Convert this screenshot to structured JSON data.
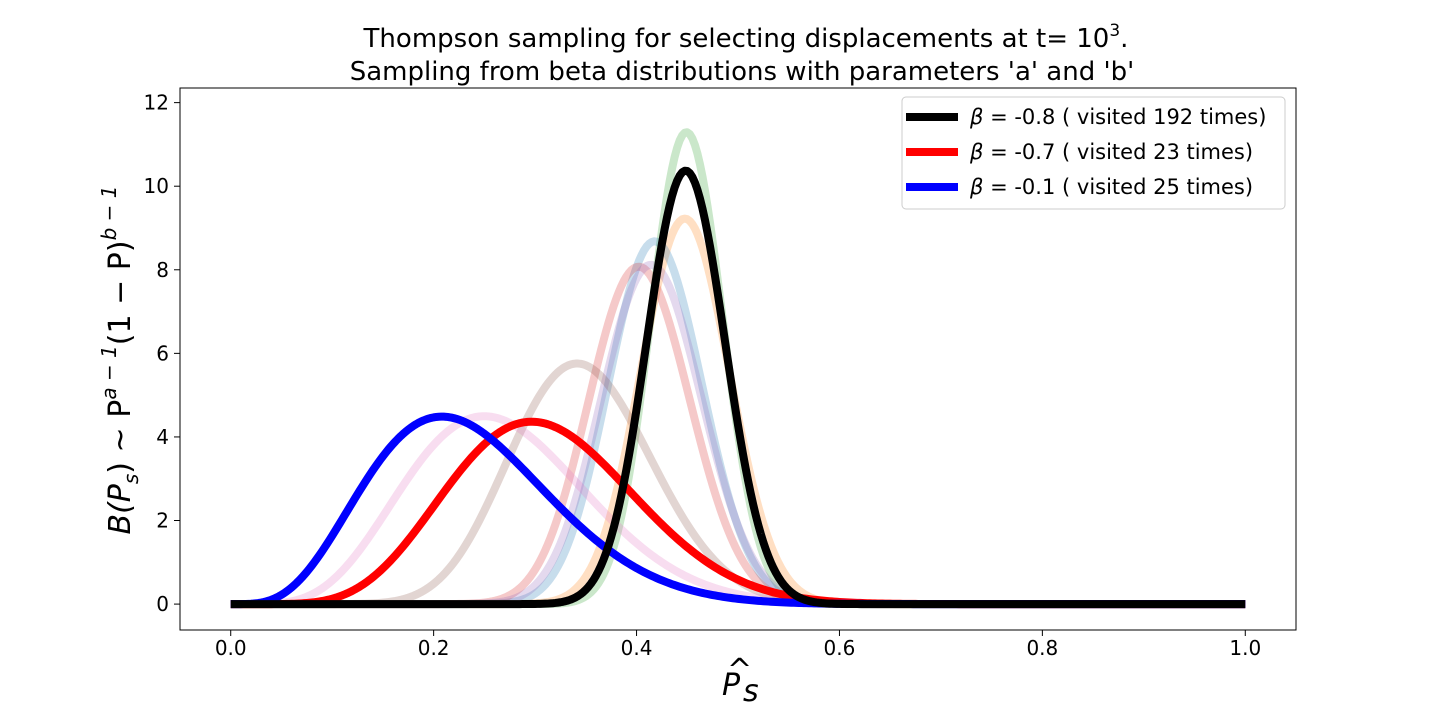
{
  "chart_data": {
    "type": "line",
    "title": {
      "line1_prefix": "Thompson sampling for selecting displacements at t= 10",
      "line1_exp": "3",
      "line1_suffix": ".",
      "line2": "Sampling from beta distributions with parameters 'a' and 'b'"
    },
    "xlabel": {
      "base": "P",
      "hat": "^",
      "sub": "s"
    },
    "ylabel": {
      "text": "B(P",
      "sub_s": "s",
      "rest": ") ~ P",
      "hat": "^",
      "sup": "a − 1",
      "mid": "(1 − P",
      "close": ")",
      "sup2": "b − 1"
    },
    "xlim": [
      -0.05,
      1.05
    ],
    "ylim": [
      -0.62,
      12.35
    ],
    "xticks": [
      0.0,
      0.2,
      0.4,
      0.6,
      0.8,
      1.0
    ],
    "xtick_labels": [
      "0.0",
      "0.2",
      "0.4",
      "0.6",
      "0.8",
      "1.0"
    ],
    "yticks": [
      0,
      2,
      4,
      6,
      8,
      10,
      12
    ],
    "ytick_labels": [
      "0",
      "2",
      "4",
      "6",
      "8",
      "10",
      "12"
    ],
    "grid": false,
    "legend_position": "top-right",
    "background_series": [
      {
        "color": "#2ca02c",
        "a": 89.4,
        "b": 109.4
      },
      {
        "color": "#ff7f0e",
        "a": 59.5,
        "b": 73.2
      },
      {
        "color": "#1f77b4",
        "a": 48.5,
        "b": 67.2
      },
      {
        "color": "#d62728",
        "a": 40.0,
        "b": 59.0
      },
      {
        "color": "#9467bd",
        "a": 42.0,
        "b": 59.0
      },
      {
        "color": "#8c564b",
        "a": 16.5,
        "b": 30.9
      },
      {
        "color": "#e377c2",
        "a": 6.63,
        "b": 17.9
      }
    ],
    "series": [
      {
        "legend_prefix": "β = ",
        "beta": "-0.8",
        "legend_suffix": " ( visited 192 times)",
        "color": "#000000",
        "a": 75.3,
        "b": 92.4
      },
      {
        "legend_prefix": "β = ",
        "beta": "-0.7",
        "legend_suffix": " ( visited 23 times)",
        "color": "#ff0000",
        "a": 8.0,
        "b": 17.6
      },
      {
        "legend_prefix": "β = ",
        "beta": "-0.1",
        "legend_suffix": " ( visited 25 times)",
        "color": "#0000ff",
        "a": 5.1,
        "b": 16.6
      }
    ]
  }
}
